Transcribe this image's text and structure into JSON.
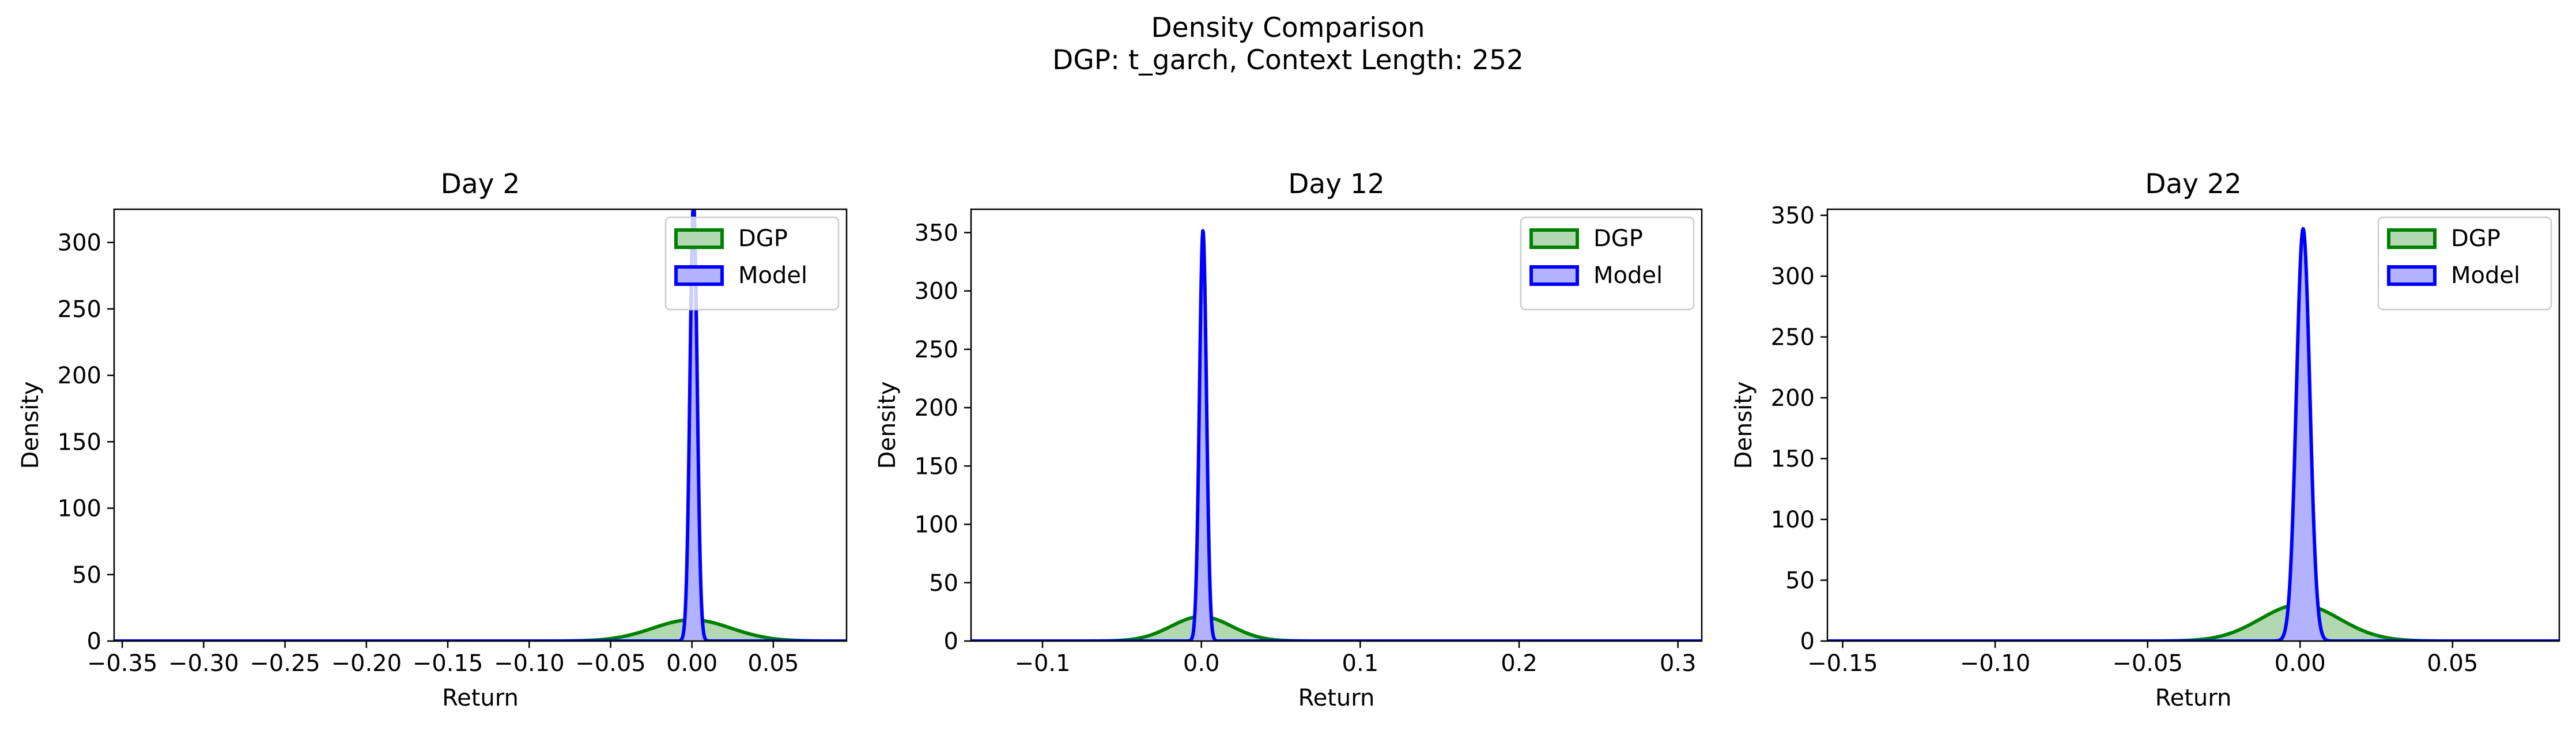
{
  "figure": {
    "title_line1": "Density Comparison",
    "title_line2": "DGP: t_garch, Context Length: 252"
  },
  "colors": {
    "dgp_line": "#008000",
    "dgp_fill": "#b2d8b2",
    "model_line": "#0000ff",
    "model_fill": "#b2b2ff",
    "axes": "#000000"
  },
  "chart_data": [
    {
      "type": "area",
      "title": "Day 2",
      "xlabel": "Return",
      "ylabel": "Density",
      "xlim": [
        -0.355,
        0.095
      ],
      "ylim": [
        0,
        325
      ],
      "xticks": [
        -0.35,
        -0.3,
        -0.25,
        -0.2,
        -0.15,
        -0.1,
        -0.05,
        0.0,
        0.05
      ],
      "xtick_labels": [
        "−0.35",
        "−0.30",
        "−0.25",
        "−0.20",
        "−0.15",
        "−0.10",
        "−0.05",
        "0.00",
        "0.05"
      ],
      "yticks": [
        0,
        50,
        100,
        150,
        200,
        250,
        300
      ],
      "yticklabels": [
        "0",
        "50",
        "100",
        "150",
        "200",
        "250",
        "300"
      ],
      "legend": "upper right",
      "series": [
        {
          "name": "DGP",
          "kind": "gaussian",
          "mean": 0.0,
          "peak": 16
        },
        {
          "name": "Model",
          "kind": "gaussian",
          "mean": 0.001,
          "peak": 330
        }
      ]
    },
    {
      "type": "area",
      "title": "Day 12",
      "xlabel": "Return",
      "ylabel": "Density",
      "xlim": [
        -0.145,
        0.315
      ],
      "ylim": [
        0,
        370
      ],
      "xticks": [
        -0.1,
        0.0,
        0.1,
        0.2,
        0.3
      ],
      "xtick_labels": [
        "−0.1",
        "0.0",
        "0.1",
        "0.2",
        "0.3"
      ],
      "yticks": [
        0,
        50,
        100,
        150,
        200,
        250,
        300,
        350
      ],
      "yticklabels": [
        "0",
        "50",
        "100",
        "150",
        "200",
        "250",
        "300",
        "350"
      ],
      "legend": "upper right",
      "series": [
        {
          "name": "DGP",
          "kind": "gaussian",
          "mean": 0.0,
          "peak": 21
        },
        {
          "name": "Model",
          "kind": "gaussian",
          "mean": 0.001,
          "peak": 352
        }
      ]
    },
    {
      "type": "area",
      "title": "Day 22",
      "xlabel": "Return",
      "ylabel": "Density",
      "xlim": [
        -0.155,
        0.085
      ],
      "ylim": [
        0,
        355
      ],
      "xticks": [
        -0.15,
        -0.1,
        -0.05,
        0.0,
        0.05
      ],
      "xtick_labels": [
        "−0.15",
        "−0.10",
        "−0.05",
        "0.00",
        "0.05"
      ],
      "yticks": [
        0,
        50,
        100,
        150,
        200,
        250,
        300,
        350
      ],
      "yticklabels": [
        "0",
        "50",
        "100",
        "150",
        "200",
        "250",
        "300",
        "350"
      ],
      "legend": "upper right",
      "series": [
        {
          "name": "DGP",
          "kind": "gaussian",
          "mean": 0.0,
          "peak": 30
        },
        {
          "name": "Model",
          "kind": "gaussian",
          "mean": 0.001,
          "peak": 339
        }
      ]
    }
  ]
}
